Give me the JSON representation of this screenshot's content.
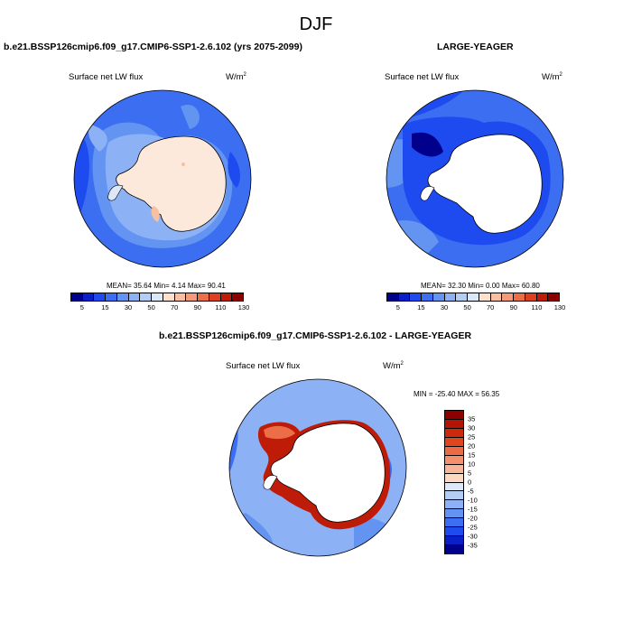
{
  "figure": {
    "season": "DJF",
    "panel1": {
      "title": "b.e21.BSSP126cmip6.f09_g17.CMIP6-SSP1-2.6.102 (yrs 2075-2099)",
      "variable": "Surface net LW flux",
      "units": "W/m",
      "units_exp": "2",
      "stats": "MEAN=  35.64  Min=   4.14  Max=  90.41"
    },
    "panel2": {
      "title": "LARGE-YEAGER",
      "variable": "Surface net LW flux",
      "units": "W/m",
      "units_exp": "2",
      "stats": "MEAN=  32.30  Min=   0.00  Max=  60.80"
    },
    "panel3": {
      "title": "b.e21.BSSP126cmip6.f09_g17.CMIP6-SSP1-2.6.102 - LARGE-YEAGER",
      "variable": "Surface net LW flux",
      "units": "W/m",
      "units_exp": "2",
      "stats": "MIN = -25.40 MAX =  56.35"
    },
    "colorbar_abs": {
      "colors": [
        "#00008c",
        "#0a1fc8",
        "#1e4bf0",
        "#3c6ef2",
        "#6494f2",
        "#8cb2f5",
        "#b4cdf5",
        "#dce8f8",
        "#fde0cd",
        "#f8bfa1",
        "#f49a78",
        "#ec6e48",
        "#dc4020",
        "#be1c08",
        "#8c0000"
      ],
      "tick_labels": [
        "5",
        "15",
        "30",
        "50",
        "70",
        "90",
        "110",
        "130"
      ]
    },
    "colorbar_diff": {
      "colors": [
        "#8c0000",
        "#b41404",
        "#cc2a0a",
        "#e0461e",
        "#ec6a44",
        "#f4906c",
        "#f8b496",
        "#fcd8c0",
        "#dce8f8",
        "#b4cdf5",
        "#8cb2f5",
        "#6494f2",
        "#3c6ef2",
        "#1e4bf0",
        "#0a1fc8",
        "#00008c"
      ],
      "tick_labels": [
        "35",
        "30",
        "25",
        "20",
        "15",
        "10",
        "5",
        "0",
        "-5",
        "-10",
        "-15",
        "-20",
        "-25",
        "-30",
        "-35"
      ]
    }
  }
}
